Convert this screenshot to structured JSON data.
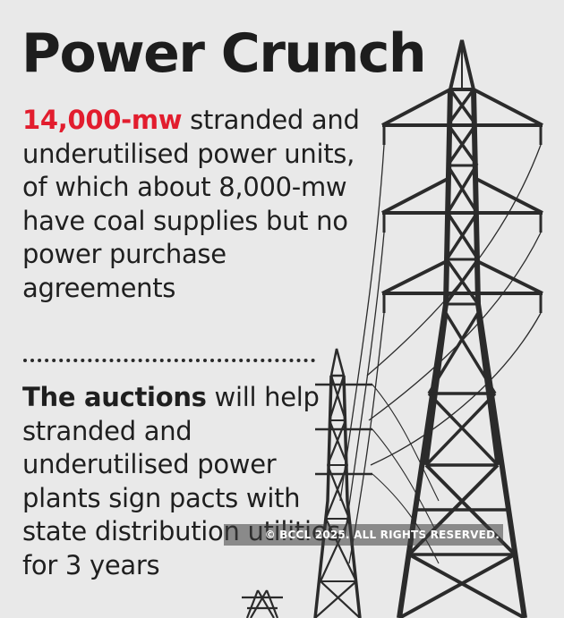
{
  "title": "Power Crunch",
  "paragraph1": {
    "highlight": "14,000-mw",
    "text": " stranded and underutilised power units, of which about 8,000-mw have coal supplies but no power purchase agreements"
  },
  "paragraph2": {
    "bold": "The auctions",
    "text": " will help stranded and underutilised power plants sign pacts with state distribution utilities for 3 years"
  },
  "watermark": "© BCCL 2025. ALL RIGHTS RESERVED.",
  "colors": {
    "background": "#e9e9e9",
    "highlight": "#e21d2e",
    "text": "#1f1f1f",
    "tower": "#2b2b2b"
  }
}
